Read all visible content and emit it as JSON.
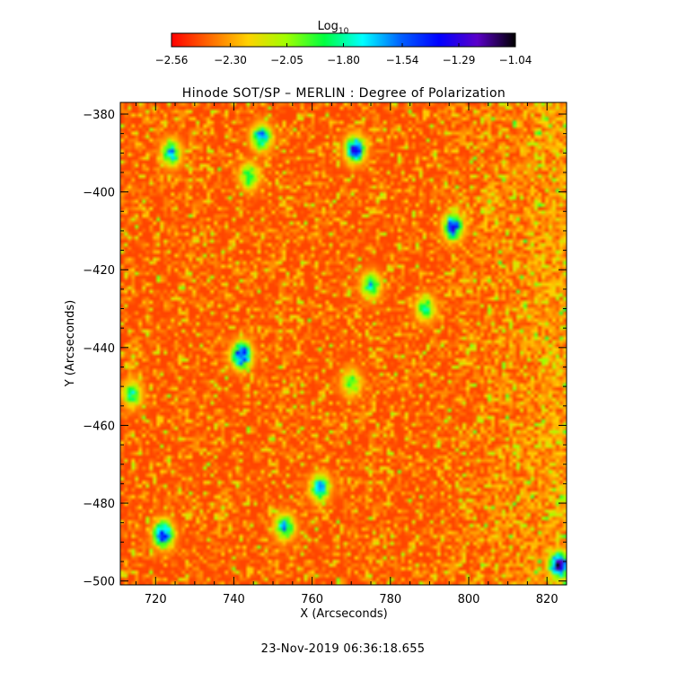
{
  "chart_data": {
    "type": "heatmap",
    "title": "Hinode SOT/SP – MERLIN : Degree of Polarization",
    "xlabel": "X (Arcseconds)",
    "ylabel": "Y (Arcseconds)",
    "xlim": [
      711,
      825
    ],
    "ylim": [
      -501,
      -377
    ],
    "x_ticks": [
      720,
      740,
      760,
      780,
      800,
      820
    ],
    "x_tick_labels": [
      "720",
      "740",
      "760",
      "780",
      "800",
      "820"
    ],
    "y_ticks": [
      -380,
      -400,
      -420,
      -440,
      -460,
      -480,
      -500
    ],
    "y_tick_labels": [
      "−380",
      "−400",
      "−420",
      "−440",
      "−460",
      "−480",
      "−500"
    ],
    "colorbar": {
      "label_base": "Log",
      "label_sub": "10",
      "range": [
        -2.56,
        -1.04
      ],
      "ticks": [
        -2.56,
        -2.3,
        -2.05,
        -1.8,
        -1.54,
        -1.29,
        -1.04
      ],
      "tick_labels": [
        "−2.56",
        "−2.30",
        "−2.05",
        "−1.80",
        "−1.54",
        "−1.29",
        "−1.04"
      ],
      "colormap": [
        "#ff0000",
        "#ff6a00",
        "#ffd200",
        "#a0ff00",
        "#00ff40",
        "#00ffff",
        "#0060ff",
        "#0000ff",
        "#5a00c8",
        "#000000"
      ]
    },
    "background_level": -2.45,
    "features": [
      {
        "x": 747,
        "y": -386.0,
        "level": -1.55
      },
      {
        "x": 771,
        "y": -389.0,
        "level": -1.35
      },
      {
        "x": 724,
        "y": -390.0,
        "level": -1.65
      },
      {
        "x": 796,
        "y": -409.0,
        "level": -1.4
      },
      {
        "x": 775,
        "y": -424.0,
        "level": -1.7
      },
      {
        "x": 742,
        "y": -442.0,
        "level": -1.3
      },
      {
        "x": 714,
        "y": -452.0,
        "level": -1.8
      },
      {
        "x": 762,
        "y": -476.0,
        "level": -1.6
      },
      {
        "x": 722,
        "y": -488.0,
        "level": -1.3
      },
      {
        "x": 753,
        "y": -486.0,
        "level": -1.65
      },
      {
        "x": 823,
        "y": -496.0,
        "level": -1.1
      },
      {
        "x": 744,
        "y": -396.0,
        "level": -1.8
      },
      {
        "x": 789,
        "y": -430.0,
        "level": -1.8
      },
      {
        "x": 770,
        "y": -449.0,
        "level": -1.85
      }
    ]
  },
  "timestamp": "23-Nov-2019 06:36:18.655"
}
